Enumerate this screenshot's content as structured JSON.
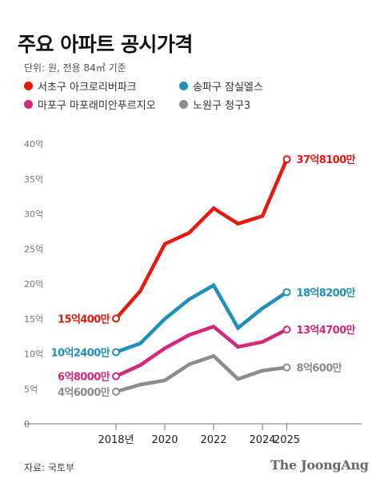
{
  "header": {
    "title": "주요 아파트 공시가격",
    "unit": "단위: 원, 전용 84㎡ 기준"
  },
  "legend": [
    {
      "label": "서초구 아크로리버파크",
      "color": "#e8190f"
    },
    {
      "label": "송파구 잠실엘스",
      "color": "#1f8fbd"
    },
    {
      "label": "마포구 마포래미안푸르지오",
      "color": "#d6287b"
    },
    {
      "label": "노원구 청구3",
      "color": "#8c8c8c"
    }
  ],
  "footer": {
    "source": "자료: 국토부",
    "brand": "The JoongAng"
  },
  "chart_data": {
    "type": "line",
    "title": "주요 아파트 공시가격",
    "x": [
      2018,
      2019,
      2020,
      2021,
      2022,
      2023,
      2024,
      2025
    ],
    "x_tick_values": [
      2018,
      2020,
      2022,
      2024,
      2025
    ],
    "x_tick_labels": [
      "2018년",
      "2020",
      "2022",
      "2024",
      "2025"
    ],
    "ylim": [
      0,
      40
    ],
    "y_ticks": [
      0,
      5,
      10,
      15,
      20,
      25,
      30,
      35,
      40
    ],
    "y_tick_labels": [
      "0",
      "5억",
      "10억",
      "15억",
      "20억",
      "25억",
      "30억",
      "35억",
      "40억"
    ],
    "grid": false,
    "series": [
      {
        "name": "서초구 아크로리버파크",
        "color": "#e8190f",
        "values": [
          15.04,
          19.0,
          25.7,
          27.3,
          30.8,
          28.6,
          29.7,
          37.81
        ],
        "start_label": "15억400만",
        "end_label": "37억8100만"
      },
      {
        "name": "송파구 잠실엘스",
        "color": "#1f8fbd",
        "values": [
          10.24,
          11.5,
          15.0,
          17.8,
          19.8,
          13.7,
          16.5,
          18.82
        ],
        "start_label": "10억2400만",
        "end_label": "18억8200만"
      },
      {
        "name": "마포구 마포래미안푸르지오",
        "color": "#d6287b",
        "values": [
          6.8,
          8.4,
          10.8,
          12.7,
          13.9,
          11.0,
          11.7,
          13.47
        ],
        "start_label": "6억8000만",
        "end_label": "13억4700만"
      },
      {
        "name": "노원구 청구3",
        "color": "#8c8c8c",
        "values": [
          4.6,
          5.6,
          6.2,
          8.5,
          9.7,
          6.4,
          7.6,
          8.06
        ],
        "start_label": "4억6000만",
        "end_label": "8억600만"
      }
    ]
  }
}
